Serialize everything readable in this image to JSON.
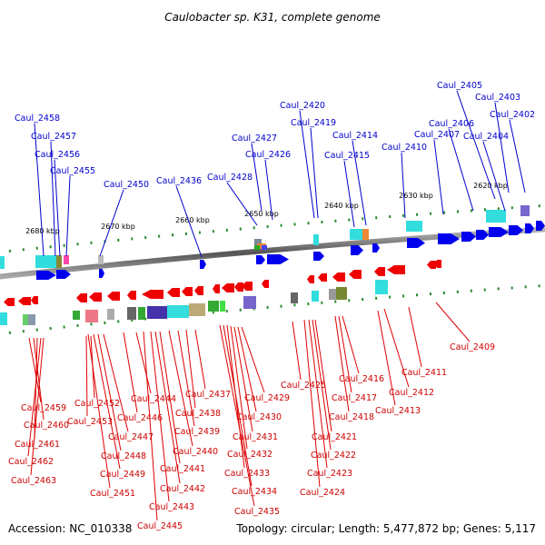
{
  "header": {
    "title": "Caulobacter sp. K31, complete genome"
  },
  "footer": {
    "accession": "Accession: NC_010338",
    "summary": "Topology: circular; Length: 5,477,872 bp; Genes: 5,117"
  },
  "ruler": {
    "ticks": [
      "2680 kbp",
      "2670 kbp",
      "2660 kbp",
      "2650 kbp",
      "2640 kbp",
      "2630 kbp",
      "2620 kbp"
    ]
  },
  "genes_top": [
    "Caul_2458",
    "Caul_2457",
    "Caul_2456",
    "Caul_2455",
    "Caul_2450",
    "Caul_2436",
    "Caul_2428",
    "Caul_2427",
    "Caul_2426",
    "Caul_2420",
    "Caul_2419",
    "Caul_2415",
    "Caul_2414",
    "Caul_2410",
    "Caul_2407",
    "Caul_2406",
    "Caul_2405",
    "Caul_2404",
    "Caul_2403",
    "Caul_2402"
  ],
  "genes_bottom": [
    "Caul_2459",
    "Caul_2460",
    "Caul_2461",
    "Caul_2462",
    "Caul_2463",
    "Caul_2452",
    "Caul_2453",
    "Caul_2447",
    "Caul_2448",
    "Caul_2449",
    "Caul_2451",
    "Caul_2444",
    "Caul_2446",
    "Caul_2443",
    "Caul_2445",
    "Caul_2442",
    "Caul_2441",
    "Caul_2440",
    "Caul_2439",
    "Caul_2438",
    "Caul_2437",
    "Caul_2429",
    "Caul_2430",
    "Caul_2431",
    "Caul_2432",
    "Caul_2433",
    "Caul_2434",
    "Caul_2435",
    "Caul_2425",
    "Caul_2421",
    "Caul_2422",
    "Caul_2423",
    "Caul_2424",
    "Caul_2416",
    "Caul_2417",
    "Caul_2418",
    "Caul_2412",
    "Caul_2413",
    "Caul_2411",
    "Caul_2409"
  ],
  "colors": {
    "forward": "#0000ee",
    "reverse": "#ee0000",
    "cyan": "#33dddd",
    "backbone": "#777777"
  }
}
